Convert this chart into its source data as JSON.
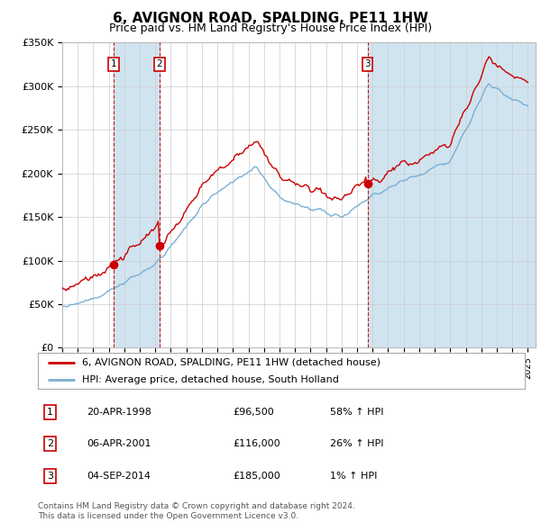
{
  "title": "6, AVIGNON ROAD, SPALDING, PE11 1HW",
  "subtitle": "Price paid vs. HM Land Registry's House Price Index (HPI)",
  "ylim": [
    0,
    350000
  ],
  "yticks": [
    0,
    50000,
    100000,
    150000,
    200000,
    250000,
    300000,
    350000
  ],
  "ytick_labels": [
    "£0",
    "£50K",
    "£100K",
    "£150K",
    "£200K",
    "£250K",
    "£300K",
    "£350K"
  ],
  "xmin": 1995.0,
  "xmax": 2025.5,
  "title_fontsize": 11,
  "subtitle_fontsize": 9,
  "legend_line1": "6, AVIGNON ROAD, SPALDING, PE11 1HW (detached house)",
  "legend_line2": "HPI: Average price, detached house, South Holland",
  "transactions": [
    {
      "num": 1,
      "date": "20-APR-1998",
      "price": 96500,
      "pct": "58%",
      "dir": "↑",
      "year": 1998.3
    },
    {
      "num": 2,
      "date": "06-APR-2001",
      "price": 116000,
      "pct": "26%",
      "dir": "↑",
      "year": 2001.27
    },
    {
      "num": 3,
      "date": "04-SEP-2014",
      "price": 185000,
      "pct": "1%",
      "dir": "↑",
      "year": 2014.67
    }
  ],
  "footer1": "Contains HM Land Registry data © Crown copyright and database right 2024.",
  "footer2": "This data is licensed under the Open Government Licence v3.0.",
  "property_line_color": "#cc0000",
  "hpi_line_color": "#7aafd4",
  "vline_color": "#cc0000",
  "span_color": "#d0e4f0",
  "background_color": "#ffffff",
  "grid_color": "#cccccc",
  "dot_color": "#cc0000"
}
